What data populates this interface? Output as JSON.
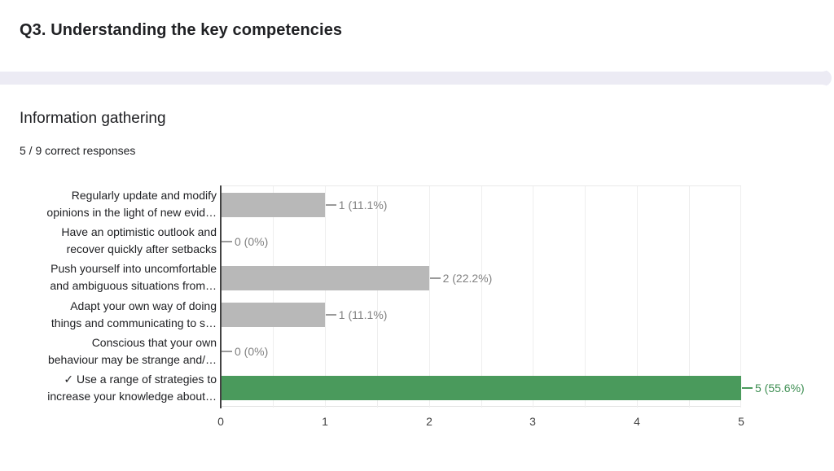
{
  "header": {
    "title": "Q3. Understanding the key competencies"
  },
  "section": {
    "title": "Information gathering",
    "subtitle": "5 / 9 correct responses"
  },
  "chart_data": {
    "type": "bar",
    "orientation": "horizontal",
    "title": "Information gathering",
    "xlabel": "",
    "ylabel": "",
    "xlim": [
      0,
      5
    ],
    "grid_step": 0.5,
    "grid": true,
    "x_tick_labels": [
      "0",
      "1",
      "2",
      "3",
      "4",
      "5"
    ],
    "categories": [
      "Regularly update and modify opinions in the light of new evid…",
      "Have an optimistic outlook and recover quickly after setbacks",
      "Push yourself into uncomfortable and ambiguous situations from…",
      "Adapt your own way of doing things and communicating to s…",
      "Conscious that your own behaviour may be strange and/…",
      "✓ Use a range of strategies to increase your knowledge about…"
    ],
    "values": [
      1,
      0,
      2,
      1,
      0,
      5
    ],
    "rows": [
      {
        "label_lines": [
          "Regularly update and modify",
          "opinions in the light of new evid…"
        ],
        "value": 1,
        "value_label": "1 (11.1%)",
        "correct": false
      },
      {
        "label_lines": [
          "Have an optimistic outlook and",
          "recover quickly after setbacks"
        ],
        "value": 0,
        "value_label": "0 (0%)",
        "correct": false
      },
      {
        "label_lines": [
          "Push yourself into uncomfortable",
          "and ambiguous situations from…"
        ],
        "value": 2,
        "value_label": "2 (22.2%)",
        "correct": false
      },
      {
        "label_lines": [
          "Adapt your own way of doing",
          "things and communicating to s…"
        ],
        "value": 1,
        "value_label": "1 (11.1%)",
        "correct": false
      },
      {
        "label_lines": [
          "Conscious that your own",
          "behaviour may be strange and/…"
        ],
        "value": 0,
        "value_label": "0 (0%)",
        "correct": false
      },
      {
        "label_lines": [
          "✓ Use a range of strategies to",
          "increase your knowledge about…"
        ],
        "value": 5,
        "value_label": "5 (55.6%)",
        "correct": true
      }
    ],
    "colors": {
      "bar_default": "#b8b8b8",
      "bar_correct": "#4a9a5c",
      "value_label_default": "#818181",
      "value_label_correct": "#3d8e52",
      "band_background": "#ecebf4"
    }
  }
}
